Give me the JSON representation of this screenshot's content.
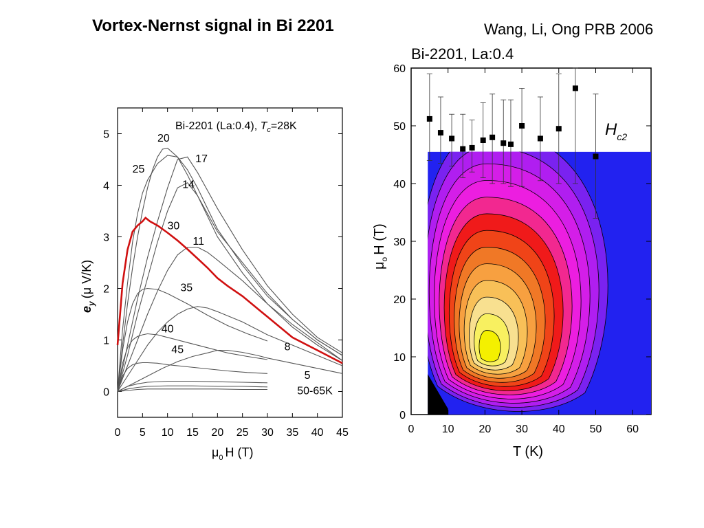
{
  "slide": {
    "title": "Vortex-Nernst signal in Bi 2201",
    "citation": "Wang, Li, Ong PRB 2006"
  },
  "chart_data": [
    {
      "type": "line",
      "title": "Bi-2201 (La:0.4), T_c=28K",
      "title_parts": {
        "prefix": "Bi-2201 (La:0.4), ",
        "t": "T",
        "sub": "c",
        "suffix": "=28K"
      },
      "xlabel": "μ0H (T)",
      "xlabel_parts": {
        "mu": "μ",
        "sub": "0",
        "rest": "H (T)"
      },
      "ylabel": "e_y (μ V/K)",
      "ylabel_parts": {
        "e": "e",
        "sub": "y",
        "rest": "(μ V/K)"
      },
      "xlim": [
        0,
        45
      ],
      "ylim": [
        -0.5,
        5.5
      ],
      "xticks": [
        0,
        5,
        10,
        15,
        20,
        25,
        30,
        35,
        40,
        45
      ],
      "yticks": [
        0,
        1,
        2,
        3,
        4,
        5
      ],
      "highlight_color": "#d01010",
      "line_color": "#555555",
      "series": [
        {
          "name": "20",
          "highlight": false,
          "x": [
            0,
            1,
            2,
            3,
            4,
            5,
            6,
            7,
            8,
            9,
            10,
            12,
            14,
            16,
            20,
            25,
            30,
            35,
            40,
            45
          ],
          "y": [
            0,
            0.9,
            1.7,
            2.4,
            3.0,
            3.5,
            3.95,
            4.3,
            4.55,
            4.7,
            4.72,
            4.55,
            4.2,
            3.8,
            3.0,
            2.3,
            1.7,
            1.25,
            0.9,
            0.6
          ]
        },
        {
          "name": "25",
          "highlight": false,
          "x": [
            0,
            1,
            2,
            3,
            4,
            5,
            6,
            8,
            10,
            12,
            14,
            16,
            20,
            25,
            30,
            35,
            40,
            45
          ],
          "y": [
            0,
            1.2,
            2.1,
            2.9,
            3.45,
            3.85,
            4.1,
            4.42,
            4.58,
            4.55,
            4.3,
            3.95,
            3.15,
            2.45,
            1.85,
            1.4,
            1.0,
            0.7
          ]
        },
        {
          "name": "17",
          "highlight": false,
          "x": [
            0,
            2,
            4,
            6,
            8,
            10,
            12,
            14,
            16,
            18,
            20,
            25,
            30,
            35,
            40,
            45
          ],
          "y": [
            0,
            0.9,
            1.8,
            2.6,
            3.3,
            3.95,
            4.5,
            4.55,
            4.25,
            3.9,
            3.55,
            2.75,
            2.05,
            1.5,
            1.05,
            0.75
          ]
        },
        {
          "name": "14",
          "highlight": false,
          "x": [
            0,
            2,
            4,
            6,
            8,
            10,
            12,
            14,
            16,
            18,
            20,
            25,
            30,
            35,
            40,
            45
          ],
          "y": [
            0,
            0.7,
            1.5,
            2.2,
            2.9,
            3.5,
            3.95,
            4.05,
            3.8,
            3.45,
            3.1,
            2.5,
            1.9,
            1.4,
            1.0,
            0.7
          ]
        },
        {
          "name": "30",
          "highlight": true,
          "x": [
            0,
            1,
            2,
            3,
            4,
            5,
            5.6,
            6.5,
            8,
            10,
            12,
            14,
            16,
            18,
            20,
            22,
            25,
            30,
            35,
            40,
            45
          ],
          "y": [
            0.9,
            2.1,
            2.75,
            3.1,
            3.22,
            3.3,
            3.37,
            3.3,
            3.22,
            3.08,
            2.93,
            2.76,
            2.58,
            2.4,
            2.2,
            2.05,
            1.85,
            1.45,
            1.05,
            0.8,
            0.55
          ]
        },
        {
          "name": "11",
          "highlight": false,
          "x": [
            0,
            2,
            4,
            6,
            8,
            10,
            12,
            14,
            16,
            18,
            20,
            25,
            30,
            35,
            40,
            45
          ],
          "y": [
            0,
            0.5,
            1.0,
            1.5,
            1.95,
            2.35,
            2.65,
            2.8,
            2.8,
            2.7,
            2.55,
            2.15,
            1.7,
            1.3,
            0.95,
            0.6
          ]
        },
        {
          "name": "8",
          "highlight": false,
          "x": [
            0,
            2,
            4,
            6,
            8,
            10,
            12,
            14,
            16,
            18,
            20,
            25,
            30,
            35,
            40,
            45
          ],
          "y": [
            0,
            0.3,
            0.6,
            0.9,
            1.15,
            1.35,
            1.5,
            1.6,
            1.65,
            1.62,
            1.55,
            1.35,
            1.1,
            0.9,
            0.7,
            0.5
          ]
        },
        {
          "name": "5",
          "highlight": false,
          "x": [
            0,
            3,
            6,
            9,
            12,
            15,
            18,
            20,
            22,
            25,
            28,
            30,
            35,
            40,
            45
          ],
          "y": [
            0,
            0.15,
            0.3,
            0.45,
            0.58,
            0.68,
            0.75,
            0.8,
            0.8,
            0.76,
            0.7,
            0.65,
            0.55,
            0.45,
            0.35
          ]
        },
        {
          "name": "35",
          "highlight": false,
          "x": [
            0,
            1,
            2,
            3,
            4,
            5,
            6,
            8,
            10,
            14,
            18,
            22,
            26,
            30
          ],
          "y": [
            0,
            0.8,
            1.35,
            1.7,
            1.9,
            1.98,
            2.0,
            1.98,
            1.9,
            1.7,
            1.48,
            1.28,
            1.12,
            0.98
          ]
        },
        {
          "name": "40",
          "highlight": false,
          "x": [
            0,
            1,
            2,
            3,
            4,
            5,
            6,
            8,
            10,
            14,
            18,
            22,
            26,
            30
          ],
          "y": [
            0,
            0.55,
            0.85,
            1.0,
            1.07,
            1.1,
            1.12,
            1.1,
            1.05,
            0.95,
            0.85,
            0.75,
            0.68,
            0.62
          ]
        },
        {
          "name": "45",
          "highlight": false,
          "x": [
            0,
            1,
            2,
            3,
            4,
            5,
            6,
            8,
            10,
            14,
            18,
            22,
            26,
            30
          ],
          "y": [
            0,
            0.3,
            0.45,
            0.52,
            0.55,
            0.56,
            0.56,
            0.55,
            0.52,
            0.48,
            0.44,
            0.4,
            0.37,
            0.35
          ]
        },
        {
          "name": "50-65K",
          "highlight": false,
          "x": [
            0,
            2,
            4,
            6,
            10,
            15,
            20,
            25,
            30
          ],
          "y": [
            0,
            0.1,
            0.15,
            0.18,
            0.2,
            0.2,
            0.19,
            0.18,
            0.17
          ]
        },
        {
          "name": "",
          "highlight": false,
          "x": [
            0,
            2,
            4,
            6,
            10,
            15,
            20,
            25,
            30
          ],
          "y": [
            0,
            0.05,
            0.08,
            0.1,
            0.11,
            0.11,
            0.1,
            0.1,
            0.09
          ]
        },
        {
          "name": "",
          "highlight": false,
          "x": [
            0,
            2,
            4,
            6,
            10,
            15,
            20,
            25,
            30
          ],
          "y": [
            0,
            0.02,
            0.04,
            0.05,
            0.05,
            0.05,
            0.05,
            0.04,
            0.04
          ]
        }
      ],
      "curve_label_positions": [
        {
          "text": "20",
          "x": 9.2,
          "y": 4.85
        },
        {
          "text": "17",
          "x": 16.8,
          "y": 4.45
        },
        {
          "text": "25",
          "x": 4.2,
          "y": 4.25
        },
        {
          "text": "14",
          "x": 14.2,
          "y": 3.95
        },
        {
          "text": "30",
          "x": 11.2,
          "y": 3.15
        },
        {
          "text": "11",
          "x": 16.2,
          "y": 2.85
        },
        {
          "text": "35",
          "x": 13.8,
          "y": 1.95
        },
        {
          "text": "40",
          "x": 10.0,
          "y": 1.15
        },
        {
          "text": "8",
          "x": 34.0,
          "y": 0.8
        },
        {
          "text": "45",
          "x": 12.0,
          "y": 0.75
        },
        {
          "text": "5",
          "x": 38.0,
          "y": 0.25
        },
        {
          "text": "50-65K",
          "x": 39.5,
          "y": -0.05
        }
      ]
    },
    {
      "type": "heatmap",
      "title": "Bi-2201, La:0.4",
      "xlabel": "T (K)",
      "ylabel": "μ0H (T)",
      "ylabel_parts": {
        "mu": "μ",
        "sub": "o",
        "rest": "H (T)"
      },
      "xlim": [
        0,
        65
      ],
      "ylim": [
        0,
        60
      ],
      "xticks": [
        0,
        10,
        20,
        30,
        40,
        50,
        60
      ],
      "yticks": [
        0,
        10,
        20,
        30,
        40,
        50,
        60
      ],
      "hc2_label": {
        "main": "H",
        "sub": "c2"
      },
      "hc2_points": {
        "T": [
          5,
          8,
          11,
          14,
          16.5,
          19.5,
          22,
          25,
          27,
          30,
          35,
          40,
          44.5,
          50
        ],
        "H": [
          51.2,
          48.8,
          47.8,
          46.0,
          46.2,
          47.5,
          48.0,
          47.0,
          46.8,
          50.0,
          47.8,
          49.5,
          56.5,
          44.7
        ],
        "err_low": [
          44,
          43.5,
          43,
          41,
          42,
          41,
          40,
          40,
          39.5,
          39.5,
          40.5,
          40,
          40,
          34
        ],
        "err_high": [
          59,
          55,
          52,
          52,
          51,
          54,
          55.5,
          54.5,
          54.5,
          56.5,
          55,
          59,
          62,
          55.5
        ]
      },
      "contour_fill_colors": [
        "#2222f0",
        "#7a22f0",
        "#b01ef0",
        "#d41ee8",
        "#ec1ee0",
        "#f22890",
        "#f01a1a",
        "#f04418",
        "#f07826",
        "#f7a040",
        "#f8c058",
        "#f8e090",
        "#f8f060",
        "#f4f000"
      ],
      "low_field_black_region": true
    }
  ]
}
